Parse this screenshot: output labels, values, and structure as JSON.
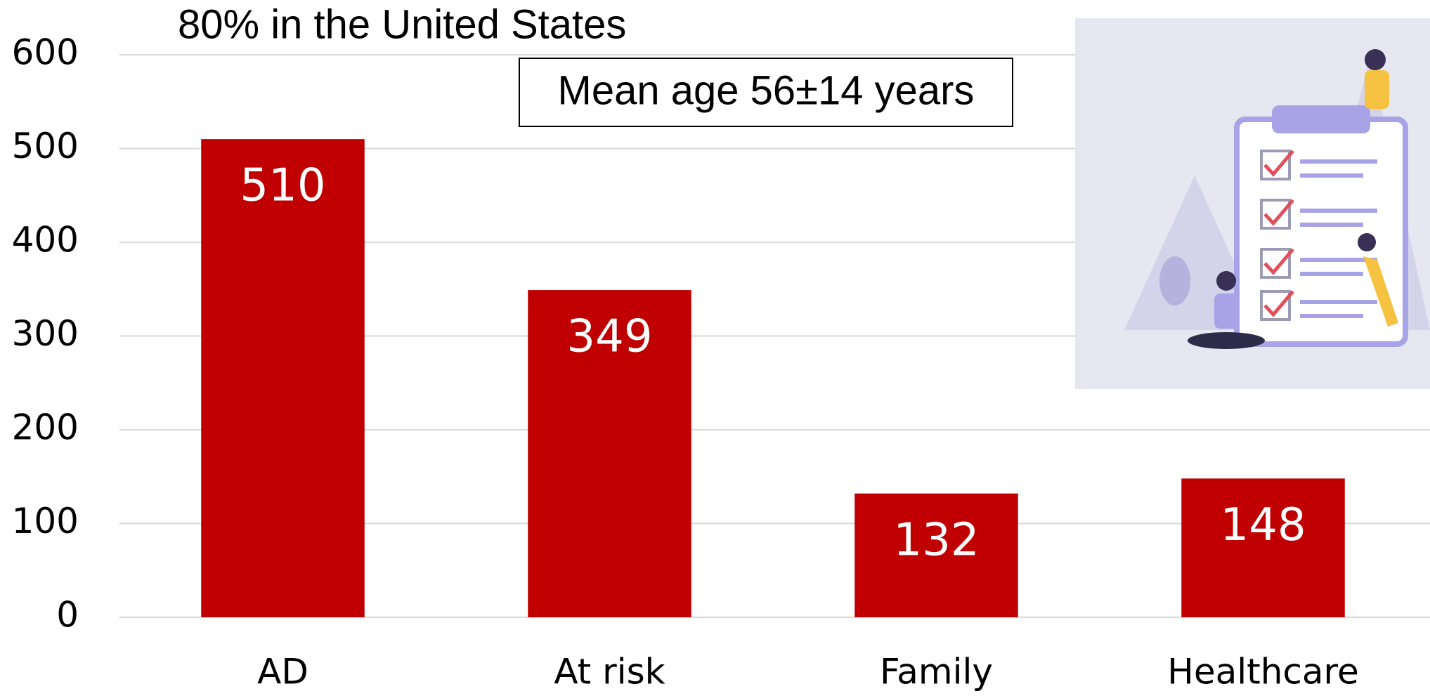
{
  "chart_data": {
    "type": "bar",
    "annotations": [
      "80% in the United States",
      "Mean age 56±14 years"
    ],
    "categories": [
      "AD",
      "At risk",
      "Family",
      "Healthcare"
    ],
    "values": [
      510,
      349,
      132,
      148
    ],
    "color": "#c00000",
    "ylim": [
      0,
      600
    ],
    "yticks": [
      0,
      100,
      200,
      300,
      400,
      500,
      600
    ],
    "grid": true
  }
}
